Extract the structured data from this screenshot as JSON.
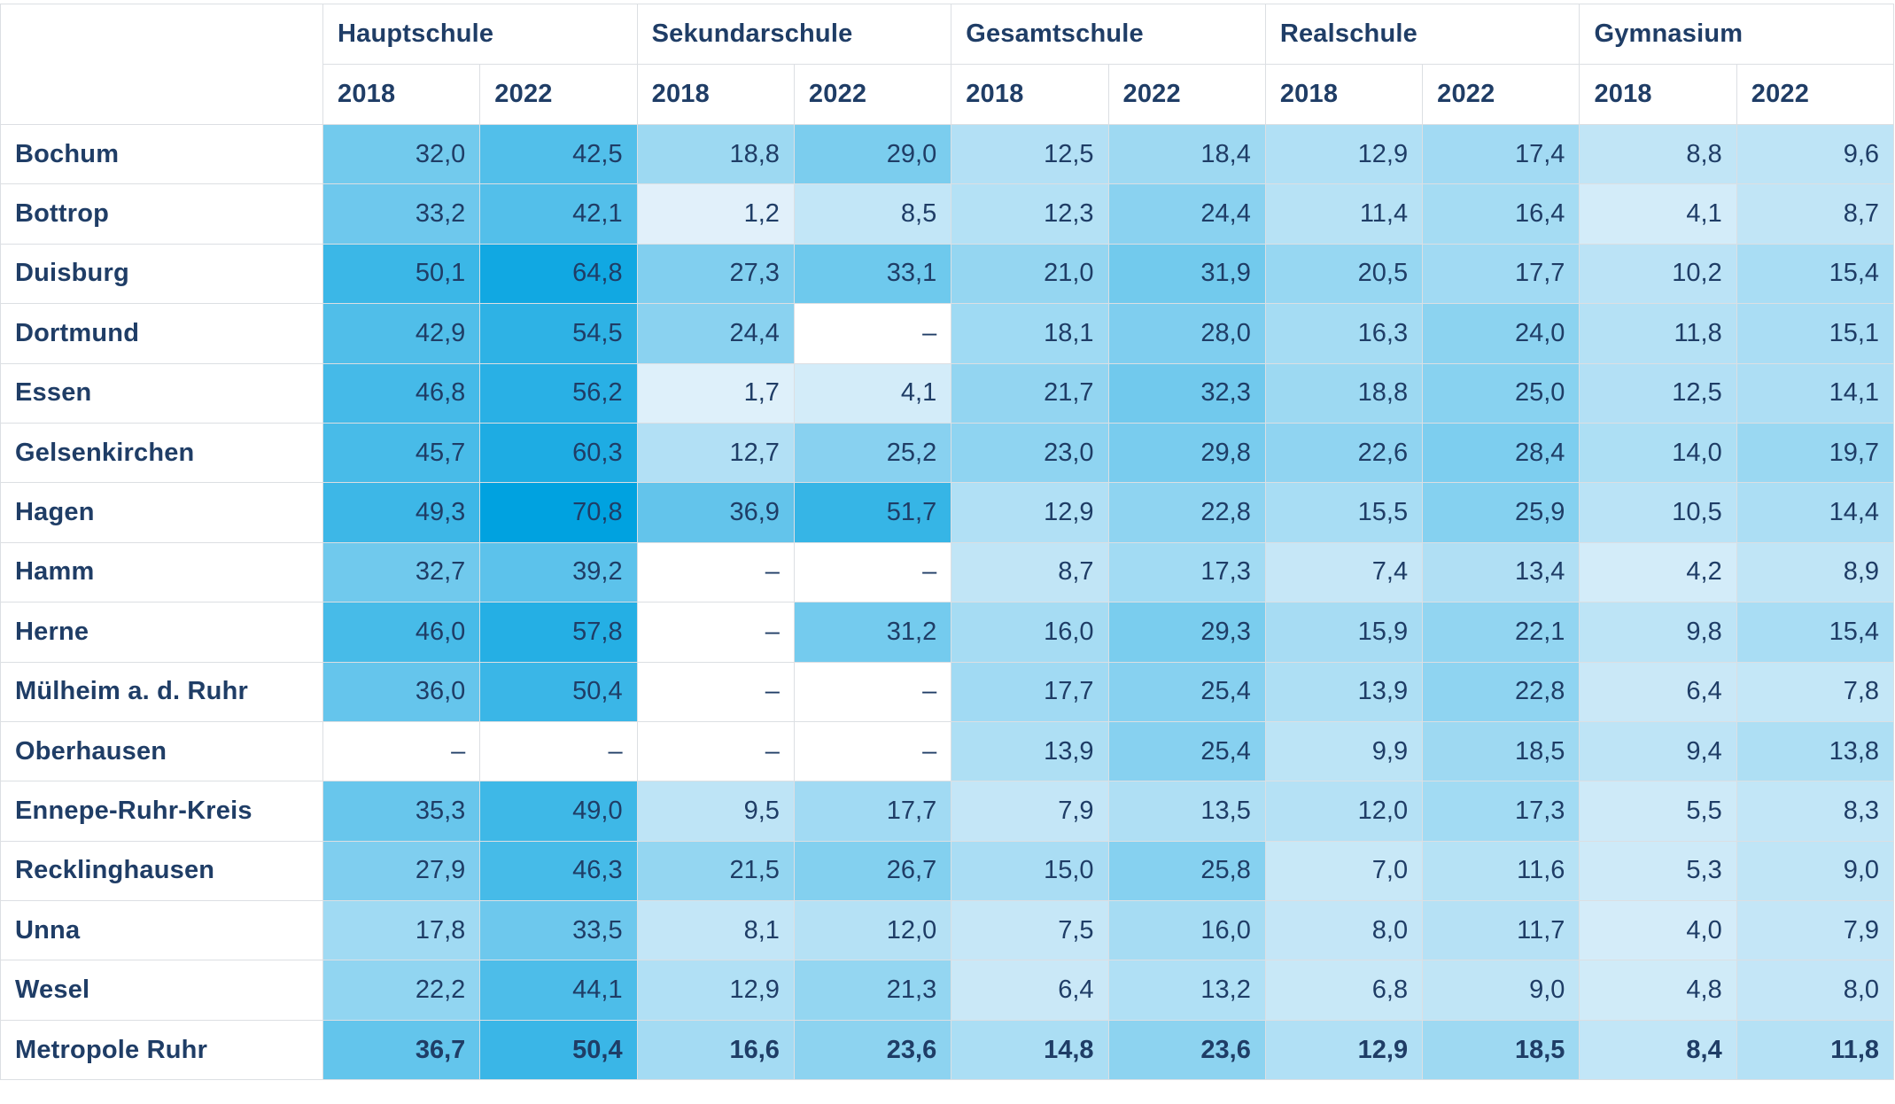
{
  "chart_data": {
    "type": "heatmap",
    "groups": [
      "Hauptschule",
      "Sekundarschule",
      "Gesamtschule",
      "Realschule",
      "Gymnasium"
    ],
    "years": [
      "2018",
      "2022"
    ],
    "color_scale": {
      "low": "#ffffff",
      "high": "#00a2e0",
      "max_value": 70.8
    },
    "missing_label": "–",
    "rows": [
      {
        "region": "Bochum",
        "values": [
          "32,0",
          "42,5",
          "18,8",
          "29,0",
          "12,5",
          "18,4",
          "12,9",
          "17,4",
          "8,8",
          "9,6"
        ]
      },
      {
        "region": "Bottrop",
        "values": [
          "33,2",
          "42,1",
          "1,2",
          "8,5",
          "12,3",
          "24,4",
          "11,4",
          "16,4",
          "4,1",
          "8,7"
        ]
      },
      {
        "region": "Duisburg",
        "values": [
          "50,1",
          "64,8",
          "27,3",
          "33,1",
          "21,0",
          "31,9",
          "20,5",
          "17,7",
          "10,2",
          "15,4"
        ]
      },
      {
        "region": "Dortmund",
        "values": [
          "42,9",
          "54,5",
          "24,4",
          "–",
          "18,1",
          "28,0",
          "16,3",
          "24,0",
          "11,8",
          "15,1"
        ]
      },
      {
        "region": "Essen",
        "values": [
          "46,8",
          "56,2",
          "1,7",
          "4,1",
          "21,7",
          "32,3",
          "18,8",
          "25,0",
          "12,5",
          "14,1"
        ]
      },
      {
        "region": "Gelsenkirchen",
        "values": [
          "45,7",
          "60,3",
          "12,7",
          "25,2",
          "23,0",
          "29,8",
          "22,6",
          "28,4",
          "14,0",
          "19,7"
        ]
      },
      {
        "region": "Hagen",
        "values": [
          "49,3",
          "70,8",
          "36,9",
          "51,7",
          "12,9",
          "22,8",
          "15,5",
          "25,9",
          "10,5",
          "14,4"
        ]
      },
      {
        "region": "Hamm",
        "values": [
          "32,7",
          "39,2",
          "–",
          "–",
          "8,7",
          "17,3",
          "7,4",
          "13,4",
          "4,2",
          "8,9"
        ]
      },
      {
        "region": "Herne",
        "values": [
          "46,0",
          "57,8",
          "–",
          "31,2",
          "16,0",
          "29,3",
          "15,9",
          "22,1",
          "9,8",
          "15,4"
        ]
      },
      {
        "region": "Mülheim a. d. Ruhr",
        "values": [
          "36,0",
          "50,4",
          "–",
          "–",
          "17,7",
          "25,4",
          "13,9",
          "22,8",
          "6,4",
          "7,8"
        ]
      },
      {
        "region": "Oberhausen",
        "values": [
          "–",
          "–",
          "–",
          "–",
          "13,9",
          "25,4",
          "9,9",
          "18,5",
          "9,4",
          "13,8"
        ]
      },
      {
        "region": "Ennepe-Ruhr-Kreis",
        "values": [
          "35,3",
          "49,0",
          "9,5",
          "17,7",
          "7,9",
          "13,5",
          "12,0",
          "17,3",
          "5,5",
          "8,3"
        ]
      },
      {
        "region": "Recklinghausen",
        "values": [
          "27,9",
          "46,3",
          "21,5",
          "26,7",
          "15,0",
          "25,8",
          "7,0",
          "11,6",
          "5,3",
          "9,0"
        ]
      },
      {
        "region": "Unna",
        "values": [
          "17,8",
          "33,5",
          "8,1",
          "12,0",
          "7,5",
          "16,0",
          "8,0",
          "11,7",
          "4,0",
          "7,9"
        ]
      },
      {
        "region": "Wesel",
        "values": [
          "22,2",
          "44,1",
          "12,9",
          "21,3",
          "6,4",
          "13,2",
          "6,8",
          "9,0",
          "4,8",
          "8,0"
        ]
      }
    ],
    "total": {
      "region": "Metropole Ruhr",
      "values": [
        "36,7",
        "50,4",
        "16,6",
        "23,6",
        "14,8",
        "23,6",
        "12,9",
        "18,5",
        "8,4",
        "11,8"
      ]
    }
  }
}
